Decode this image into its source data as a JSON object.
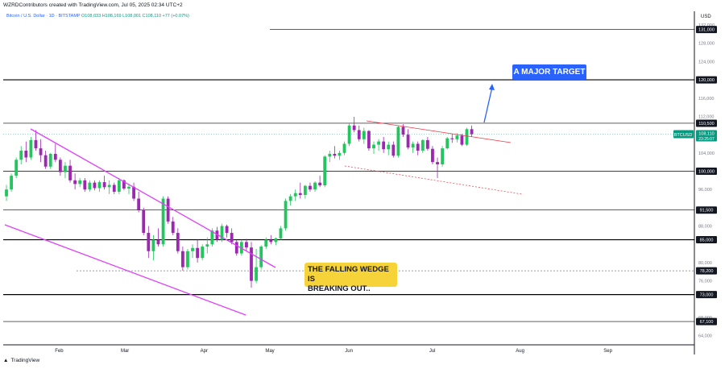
{
  "header": {
    "created_by": "WZRDContributors created with TradingView.com, Jul 05, 2025 02:34 UTC+2",
    "symbol_line": "Bitcoin / U.S. Dollar · 1D · BITSTAMP",
    "ohlc": "O108,033  H108,169  L108,001  C108,110  +77 (+0.07%)"
  },
  "footer": {
    "brand": "TradingView"
  },
  "annotations": {
    "target": "A MAJOR TARGET",
    "wedge_line1": "THE FALLING WEDGE IS",
    "wedge_line2": "BREAKING OUT.."
  },
  "colors": {
    "up": "#089981",
    "down": "#f23645",
    "bull_candle": "#22c55e",
    "bear_candle": "#9c27b0",
    "wedge": "#e040fb",
    "target_box": "#2962ff",
    "label_box": "#f7d33a",
    "level": "#000000"
  },
  "chart_data": {
    "type": "candlestick",
    "symbol": "BTCUSD",
    "currency": "USD",
    "last_price": "108,110",
    "countdown": "23:25:07",
    "ylim": [
      62000,
      135000
    ],
    "y_ticks": [
      {
        "value": 132000,
        "label": "132,000"
      },
      {
        "value": 128000,
        "label": "128,000"
      },
      {
        "value": 124000,
        "label": "124,000"
      },
      {
        "value": 116000,
        "label": "116,000"
      },
      {
        "value": 112000,
        "label": "112,000"
      },
      {
        "value": 104000,
        "label": "104,000"
      },
      {
        "value": 96000,
        "label": "96,000"
      },
      {
        "value": 88000,
        "label": "88,000"
      },
      {
        "value": 80000,
        "label": "80,000"
      },
      {
        "value": 76000,
        "label": "76,000"
      },
      {
        "value": 68000,
        "label": "68,000"
      },
      {
        "value": 64000,
        "label": "64,000"
      }
    ],
    "x_ticks": [
      "Feb",
      "Mar",
      "Apr",
      "May",
      "Jun",
      "Jul",
      "Aug",
      "Sep"
    ],
    "levels": [
      {
        "value": 131000,
        "label": "131,000"
      },
      {
        "value": 120000,
        "label": "120,000"
      },
      {
        "value": 110500,
        "label": "110,500"
      },
      {
        "value": 100000,
        "label": "100,000"
      },
      {
        "value": 91500,
        "label": "91,500"
      },
      {
        "value": 85000,
        "label": "85,000"
      },
      {
        "value": 78200,
        "label": "78,200"
      },
      {
        "value": 73000,
        "label": "73,000"
      },
      {
        "value": 67100,
        "label": "67,100"
      }
    ],
    "candles": [
      [
        94500,
        97000,
        93500,
        96000
      ],
      [
        96000,
        99500,
        95500,
        99000
      ],
      [
        99000,
        103000,
        98500,
        102500
      ],
      [
        102500,
        105500,
        101500,
        104500
      ],
      [
        104500,
        106500,
        102000,
        103000
      ],
      [
        103000,
        107500,
        102500,
        106800
      ],
      [
        106800,
        109000,
        104500,
        105000
      ],
      [
        105000,
        107000,
        102000,
        103500
      ],
      [
        103500,
        104500,
        100500,
        101000
      ],
      [
        101000,
        104000,
        100500,
        103800
      ],
      [
        103800,
        106000,
        102000,
        102500
      ],
      [
        102500,
        103000,
        99000,
        99800
      ],
      [
        99800,
        102000,
        98500,
        101200
      ],
      [
        101200,
        102500,
        97500,
        98000
      ],
      [
        98000,
        99500,
        96000,
        97200
      ],
      [
        97200,
        98500,
        96500,
        98000
      ],
      [
        98000,
        98500,
        95500,
        96000
      ],
      [
        96000,
        98000,
        95500,
        97500
      ],
      [
        97500,
        98000,
        95800,
        96300
      ],
      [
        96300,
        98000,
        95500,
        97600
      ],
      [
        97600,
        99000,
        96000,
        96500
      ],
      [
        96500,
        98000,
        95000,
        97000
      ],
      [
        97000,
        97500,
        95000,
        95500
      ],
      [
        95500,
        98500,
        95000,
        98000
      ],
      [
        98000,
        98200,
        95800,
        96200
      ],
      [
        96200,
        97200,
        95000,
        96600
      ],
      [
        96600,
        97500,
        93500,
        94000
      ],
      [
        94000,
        95500,
        91000,
        91500
      ],
      [
        91500,
        92000,
        86000,
        86500
      ],
      [
        86500,
        88000,
        81000,
        82500
      ],
      [
        82500,
        86000,
        80500,
        85000
      ],
      [
        85000,
        87500,
        83500,
        84000
      ],
      [
        84000,
        94500,
        83500,
        94000
      ],
      [
        94000,
        94500,
        88500,
        89000
      ],
      [
        89000,
        90000,
        86000,
        86500
      ],
      [
        86500,
        87500,
        82000,
        82500
      ],
      [
        82500,
        83500,
        78200,
        79000
      ],
      [
        79000,
        83000,
        78500,
        82500
      ],
      [
        82500,
        84000,
        81000,
        83200
      ],
      [
        83200,
        85000,
        80000,
        81000
      ],
      [
        81000,
        84000,
        80500,
        83500
      ],
      [
        83500,
        85500,
        82000,
        84000
      ],
      [
        84000,
        87500,
        83500,
        87000
      ],
      [
        87000,
        87800,
        84500,
        85000
      ],
      [
        85000,
        88500,
        84500,
        88000
      ],
      [
        88000,
        88300,
        85500,
        86500
      ],
      [
        86500,
        87500,
        84000,
        84500
      ],
      [
        84500,
        85000,
        81500,
        82000
      ],
      [
        82000,
        85000,
        81500,
        84500
      ],
      [
        84500,
        85200,
        82500,
        83300
      ],
      [
        83300,
        84500,
        74500,
        76000
      ],
      [
        76000,
        83000,
        75500,
        79000
      ],
      [
        79000,
        83800,
        78500,
        83500
      ],
      [
        83500,
        85500,
        83000,
        85000
      ],
      [
        85000,
        86000,
        84000,
        84500
      ],
      [
        84500,
        85500,
        83800,
        85300
      ],
      [
        85300,
        88000,
        85000,
        87500
      ],
      [
        87500,
        94000,
        87000,
        93500
      ],
      [
        93500,
        95000,
        92500,
        94500
      ],
      [
        94500,
        96000,
        93500,
        95200
      ],
      [
        95200,
        97500,
        94000,
        94800
      ],
      [
        94800,
        97000,
        94000,
        96800
      ],
      [
        96800,
        97500,
        95500,
        96000
      ],
      [
        96000,
        97800,
        95500,
        97500
      ],
      [
        97500,
        99000,
        96500,
        96900
      ],
      [
        96900,
        103500,
        96500,
        103200
      ],
      [
        103200,
        104500,
        102000,
        103800
      ],
      [
        103800,
        105500,
        102800,
        103400
      ],
      [
        103400,
        104500,
        102500,
        104000
      ],
      [
        104000,
        106500,
        103500,
        106000
      ],
      [
        106000,
        110500,
        105500,
        110000
      ],
      [
        110000,
        111900,
        108500,
        109000
      ],
      [
        109000,
        110000,
        106500,
        107000
      ],
      [
        107000,
        109500,
        106000,
        108800
      ],
      [
        108800,
        109000,
        104500,
        105000
      ],
      [
        105000,
        106500,
        103800,
        105800
      ],
      [
        105800,
        107000,
        104500,
        106500
      ],
      [
        106500,
        107500,
        104000,
        104800
      ],
      [
        104800,
        106500,
        103500,
        105800
      ],
      [
        105800,
        106500,
        103000,
        103400
      ],
      [
        103400,
        110000,
        103000,
        109700
      ],
      [
        109700,
        110300,
        107500,
        108000
      ],
      [
        108000,
        109200,
        104800,
        105200
      ],
      [
        105200,
        106500,
        104000,
        106000
      ],
      [
        106000,
        106500,
        103500,
        104500
      ],
      [
        104500,
        107000,
        104000,
        106800
      ],
      [
        106800,
        107500,
        104500,
        104900
      ],
      [
        104900,
        105500,
        101500,
        102000
      ],
      [
        102000,
        103000,
        98500,
        101500
      ],
      [
        101500,
        105500,
        101000,
        105000
      ],
      [
        105000,
        107500,
        104800,
        107200
      ],
      [
        107200,
        108200,
        106200,
        107000
      ],
      [
        107000,
        108300,
        106300,
        107800
      ],
      [
        107800,
        108200,
        105500,
        105800
      ],
      [
        105800,
        109500,
        105500,
        109200
      ],
      [
        109200,
        110000,
        107500,
        108100
      ]
    ],
    "wedge_upper": [
      [
        0,
        109700
      ],
      [
        39,
        80500
      ]
    ],
    "wedge_lower": [
      [
        0,
        92500
      ],
      [
        37,
        69500
      ]
    ],
    "pattern_upper": [
      [
        56,
        111500
      ],
      [
        78,
        107000
      ]
    ],
    "pattern_lower": [
      [
        52,
        101500
      ],
      [
        80,
        96800
      ]
    ],
    "arrow_from": [
      73,
      111000
    ],
    "arrow_to": [
      76,
      120500
    ]
  }
}
